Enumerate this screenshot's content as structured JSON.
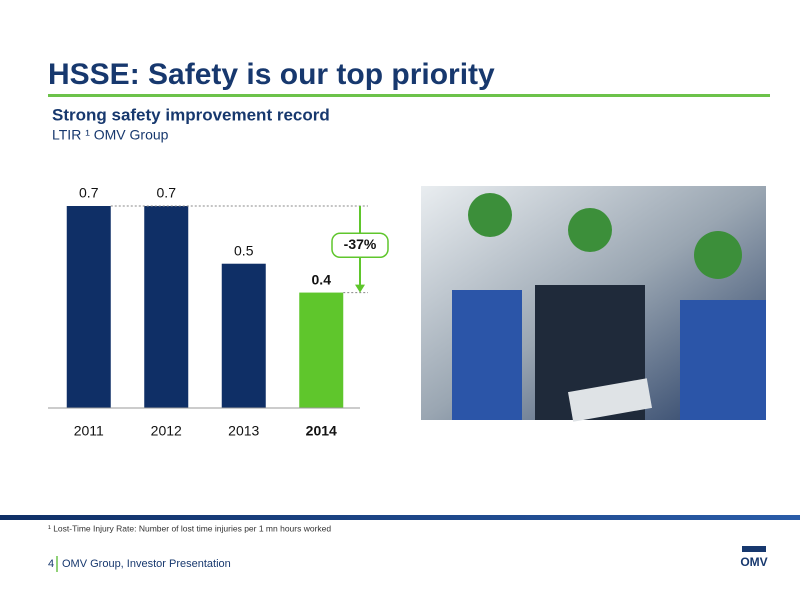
{
  "slide_title": "HSSE: Safety is our top priority",
  "chart_data": {
    "type": "bar",
    "title": "Strong safety improvement record",
    "subtitle": "LTIR ¹ OMV Group",
    "categories": [
      "2011",
      "2012",
      "2013",
      "2014"
    ],
    "values": [
      0.7,
      0.7,
      0.5,
      0.4
    ],
    "colors": [
      "#0f2f66",
      "#0f2f66",
      "#0f2f66",
      "#5fc62c"
    ],
    "annotation": "-37%"
  },
  "footnote": "¹ Lost-Time Injury Rate: Number of lost time injuries per 1 mn hours worked",
  "footer": {
    "page": "4",
    "text": "OMV Group, Investor Presentation"
  },
  "logo": "OMV"
}
